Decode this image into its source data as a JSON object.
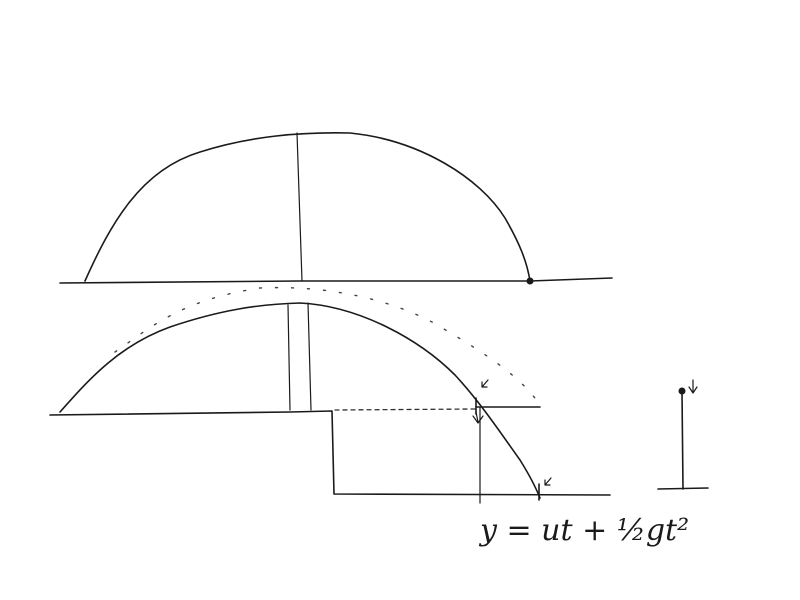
{
  "equation": {
    "text": "y = ut + ½gt²"
  },
  "colors": {
    "ink": "#1a1a1a",
    "background": "#ffffff"
  }
}
